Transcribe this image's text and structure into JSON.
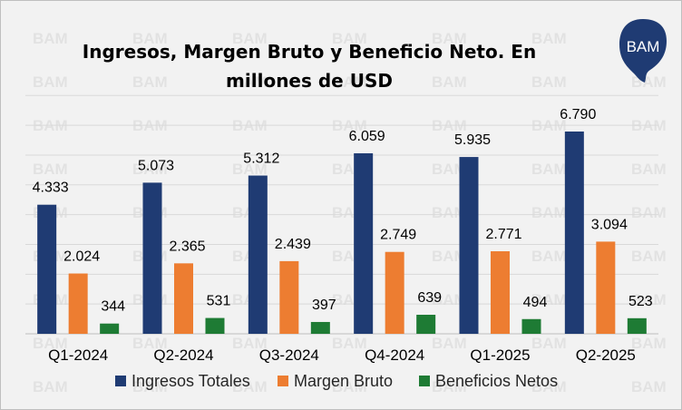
{
  "chart_data": {
    "type": "bar",
    "title": "Ingresos, Margen Bruto y Beneficio Neto. En millones de USD",
    "categories": [
      "Q1-2024",
      "Q2-2024",
      "Q3-2024",
      "Q4-2024",
      "Q1-2025",
      "Q2-2025"
    ],
    "series": [
      {
        "name": "Ingresos Totales",
        "color": "#1f3b73",
        "values": [
          4333,
          5073,
          5312,
          6059,
          5935,
          6790
        ],
        "labels": [
          "4.333",
          "5.073",
          "5.312",
          "6.059",
          "5.935",
          "6.790"
        ]
      },
      {
        "name": "Margen Bruto",
        "color": "#ed7d31",
        "values": [
          2024,
          2365,
          2439,
          2749,
          2771,
          3094
        ],
        "labels": [
          "2.024",
          "2.365",
          "2.439",
          "2.749",
          "2.771",
          "3.094"
        ]
      },
      {
        "name": "Beneficios Netos",
        "color": "#1e7b34",
        "values": [
          344,
          531,
          397,
          639,
          494,
          523
        ],
        "labels": [
          "344",
          "531",
          "397",
          "639",
          "494",
          "523"
        ]
      }
    ],
    "ylim": [
      0,
      8000
    ],
    "grid": true,
    "legend": "bottom"
  },
  "logo": {
    "text": "BAM",
    "color": "#1f3b73"
  },
  "watermark": "BAM"
}
